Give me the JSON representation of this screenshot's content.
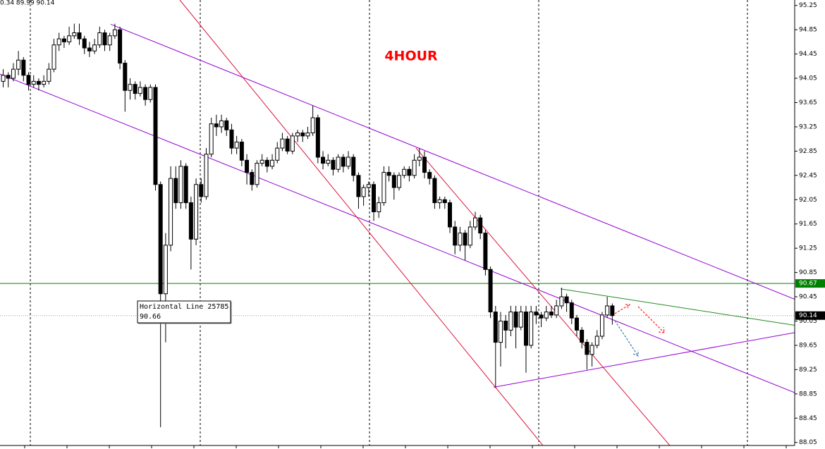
{
  "chart_data": {
    "type": "candlestick",
    "info": "0.34 89.99 90.14",
    "annotation": "4HOUR",
    "xlim": [
      -0.56,
      156
    ],
    "ylim": [
      88.0,
      95.34
    ],
    "yticks": [
      95.25,
      94.85,
      94.45,
      94.05,
      93.65,
      93.25,
      92.85,
      92.45,
      92.05,
      91.65,
      91.25,
      90.85,
      90.45,
      90.05,
      89.65,
      89.25,
      88.85,
      88.45,
      88.05
    ],
    "ohlc": [
      [
        94.0,
        94.2,
        93.9,
        94.1
      ],
      [
        94.1,
        94.15,
        93.9,
        94.05
      ],
      [
        94.05,
        94.3,
        94.0,
        94.2
      ],
      [
        94.2,
        94.5,
        94.1,
        94.35
      ],
      [
        94.35,
        94.4,
        94.0,
        94.1
      ],
      [
        94.1,
        94.15,
        93.85,
        93.95
      ],
      [
        93.95,
        94.1,
        93.9,
        94.0
      ],
      [
        94.0,
        94.05,
        93.85,
        93.95
      ],
      [
        93.95,
        94.1,
        93.9,
        94.0
      ],
      [
        94.0,
        94.3,
        93.95,
        94.2
      ],
      [
        94.2,
        94.7,
        94.15,
        94.6
      ],
      [
        94.6,
        94.8,
        94.5,
        94.7
      ],
      [
        94.7,
        94.75,
        94.55,
        94.65
      ],
      [
        94.65,
        94.9,
        94.6,
        94.75
      ],
      [
        94.75,
        94.95,
        94.7,
        94.8
      ],
      [
        94.8,
        94.95,
        94.6,
        94.7
      ],
      [
        94.7,
        94.75,
        94.45,
        94.55
      ],
      [
        94.55,
        94.65,
        94.4,
        94.5
      ],
      [
        94.5,
        94.7,
        94.45,
        94.6
      ],
      [
        94.6,
        94.9,
        94.55,
        94.8
      ],
      [
        94.8,
        94.85,
        94.5,
        94.6
      ],
      [
        94.6,
        94.8,
        94.5,
        94.75
      ],
      [
        94.75,
        94.95,
        94.7,
        94.85
      ],
      [
        94.85,
        94.9,
        94.2,
        94.3
      ],
      [
        94.3,
        94.35,
        93.5,
        93.85
      ],
      [
        93.85,
        94.05,
        93.7,
        93.95
      ],
      [
        93.95,
        94.0,
        93.7,
        93.8
      ],
      [
        93.8,
        94.0,
        93.75,
        93.9
      ],
      [
        93.9,
        93.95,
        93.6,
        93.7
      ],
      [
        93.7,
        93.95,
        93.65,
        93.9
      ],
      [
        93.9,
        93.95,
        92.2,
        92.3
      ],
      [
        92.3,
        92.35,
        88.3,
        90.5
      ],
      [
        90.5,
        91.5,
        89.7,
        91.3
      ],
      [
        91.3,
        92.6,
        91.2,
        92.4
      ],
      [
        92.4,
        92.6,
        91.9,
        92.0
      ],
      [
        92.0,
        92.7,
        91.9,
        92.6
      ],
      [
        92.6,
        92.65,
        91.9,
        92.0
      ],
      [
        92.0,
        92.1,
        90.9,
        91.4
      ],
      [
        91.4,
        92.4,
        91.3,
        92.3
      ],
      [
        92.3,
        92.4,
        92.0,
        92.1
      ],
      [
        92.1,
        92.9,
        92.05,
        92.8
      ],
      [
        92.8,
        93.4,
        92.75,
        93.3
      ],
      [
        93.3,
        93.45,
        93.1,
        93.25
      ],
      [
        93.25,
        93.45,
        93.15,
        93.35
      ],
      [
        93.35,
        93.4,
        93.1,
        93.2
      ],
      [
        93.2,
        93.3,
        92.8,
        92.9
      ],
      [
        92.9,
        93.1,
        92.8,
        93.0
      ],
      [
        93.0,
        93.05,
        92.6,
        92.7
      ],
      [
        92.7,
        92.8,
        92.3,
        92.5
      ],
      [
        92.5,
        92.55,
        92.2,
        92.3
      ],
      [
        92.3,
        92.7,
        92.25,
        92.65
      ],
      [
        92.65,
        92.8,
        92.6,
        92.7
      ],
      [
        92.7,
        92.75,
        92.5,
        92.6
      ],
      [
        92.6,
        92.8,
        92.55,
        92.7
      ],
      [
        92.7,
        93.0,
        92.65,
        92.9
      ],
      [
        92.9,
        93.15,
        92.85,
        93.05
      ],
      [
        93.05,
        93.1,
        92.8,
        92.85
      ],
      [
        92.85,
        93.15,
        92.8,
        93.1
      ],
      [
        93.1,
        93.2,
        93.0,
        93.15
      ],
      [
        93.15,
        93.2,
        93.0,
        93.1
      ],
      [
        93.1,
        93.25,
        93.05,
        93.15
      ],
      [
        93.15,
        93.6,
        93.1,
        93.4
      ],
      [
        93.4,
        93.45,
        92.65,
        92.75
      ],
      [
        92.75,
        92.85,
        92.55,
        92.65
      ],
      [
        92.65,
        92.8,
        92.6,
        92.7
      ],
      [
        92.7,
        92.75,
        92.45,
        92.55
      ],
      [
        92.55,
        92.8,
        92.5,
        92.75
      ],
      [
        92.75,
        92.8,
        92.5,
        92.6
      ],
      [
        92.6,
        92.85,
        92.55,
        92.75
      ],
      [
        92.75,
        92.8,
        92.35,
        92.45
      ],
      [
        92.45,
        92.5,
        91.9,
        92.1
      ],
      [
        92.1,
        92.3,
        91.95,
        92.25
      ],
      [
        92.25,
        92.35,
        92.1,
        92.3
      ],
      [
        92.3,
        92.35,
        91.7,
        91.85
      ],
      [
        91.85,
        92.1,
        91.75,
        92.0
      ],
      [
        92.0,
        92.6,
        91.95,
        92.5
      ],
      [
        92.5,
        92.6,
        92.35,
        92.45
      ],
      [
        92.45,
        92.5,
        92.05,
        92.25
      ],
      [
        92.25,
        92.5,
        92.2,
        92.45
      ],
      [
        92.45,
        92.6,
        92.4,
        92.55
      ],
      [
        92.55,
        92.6,
        92.35,
        92.45
      ],
      [
        92.45,
        92.8,
        92.4,
        92.7
      ],
      [
        92.7,
        92.9,
        92.6,
        92.75
      ],
      [
        92.75,
        92.85,
        92.4,
        92.5
      ],
      [
        92.5,
        92.55,
        92.3,
        92.4
      ],
      [
        92.4,
        92.45,
        91.9,
        92.0
      ],
      [
        92.0,
        92.1,
        91.9,
        92.05
      ],
      [
        92.05,
        92.1,
        91.9,
        92.0
      ],
      [
        92.0,
        92.05,
        91.5,
        91.6
      ],
      [
        91.6,
        91.7,
        91.15,
        91.3
      ],
      [
        91.3,
        91.6,
        91.2,
        91.5
      ],
      [
        91.5,
        91.55,
        91.05,
        91.3
      ],
      [
        91.3,
        91.7,
        91.25,
        91.6
      ],
      [
        91.6,
        91.85,
        91.55,
        91.75
      ],
      [
        91.75,
        91.8,
        91.4,
        91.5
      ],
      [
        91.5,
        91.55,
        90.8,
        90.9
      ],
      [
        90.9,
        90.95,
        90.1,
        90.2
      ],
      [
        90.2,
        90.3,
        88.95,
        89.7
      ],
      [
        89.7,
        90.2,
        89.3,
        90.05
      ],
      [
        90.05,
        90.15,
        89.6,
        89.9
      ],
      [
        89.9,
        90.3,
        89.8,
        90.2
      ],
      [
        90.2,
        90.3,
        89.6,
        89.95
      ],
      [
        89.95,
        90.3,
        89.9,
        90.2
      ],
      [
        90.2,
        90.3,
        89.2,
        89.65
      ],
      [
        89.65,
        90.3,
        89.6,
        90.2
      ],
      [
        90.2,
        90.3,
        90.0,
        90.15
      ],
      [
        90.15,
        90.2,
        89.95,
        90.1
      ],
      [
        90.1,
        90.3,
        90.05,
        90.2
      ],
      [
        90.2,
        90.3,
        90.1,
        90.15
      ],
      [
        90.15,
        90.4,
        90.1,
        90.3
      ],
      [
        90.3,
        90.6,
        90.25,
        90.45
      ],
      [
        90.45,
        90.5,
        90.2,
        90.35
      ],
      [
        90.35,
        90.4,
        90.0,
        90.1
      ],
      [
        90.1,
        90.15,
        89.8,
        89.9
      ],
      [
        89.9,
        89.95,
        89.6,
        89.7
      ],
      [
        89.7,
        89.75,
        89.25,
        89.5
      ],
      [
        89.5,
        89.7,
        89.3,
        89.65
      ],
      [
        89.65,
        89.9,
        89.6,
        89.8
      ],
      [
        89.8,
        90.2,
        89.75,
        90.15
      ],
      [
        90.15,
        90.45,
        90.1,
        90.3
      ],
      [
        90.3,
        90.34,
        89.99,
        90.14
      ]
    ],
    "trendlines": [
      {
        "x": [
          21.25,
          156
        ],
        "y": [
          94.94,
          90.41
        ],
        "color": "#9400d3"
      },
      {
        "x": [
          -0.56,
          156
        ],
        "y": [
          94.12,
          88.87
        ],
        "color": "#9400d3"
      },
      {
        "x": [
          96.7,
          156
        ],
        "y": [
          88.96,
          89.86
        ],
        "color": "#9400d3"
      },
      {
        "x": [
          34.86,
          106.4
        ],
        "y": [
          95.34,
          88.0
        ],
        "color": "#dc143c"
      },
      {
        "x": [
          81.4,
          131.4
        ],
        "y": [
          92.9,
          88.0
        ],
        "color": "#dc143c"
      },
      {
        "x": [
          109.9,
          156
        ],
        "y": [
          90.58,
          89.98
        ],
        "color": "#228b22"
      }
    ],
    "levels": [
      {
        "value": 90.67,
        "color": "#008000"
      }
    ],
    "bid": 90.14,
    "tooltip": {
      "title": "Horizontal Line 25785",
      "value": 90.66
    }
  }
}
